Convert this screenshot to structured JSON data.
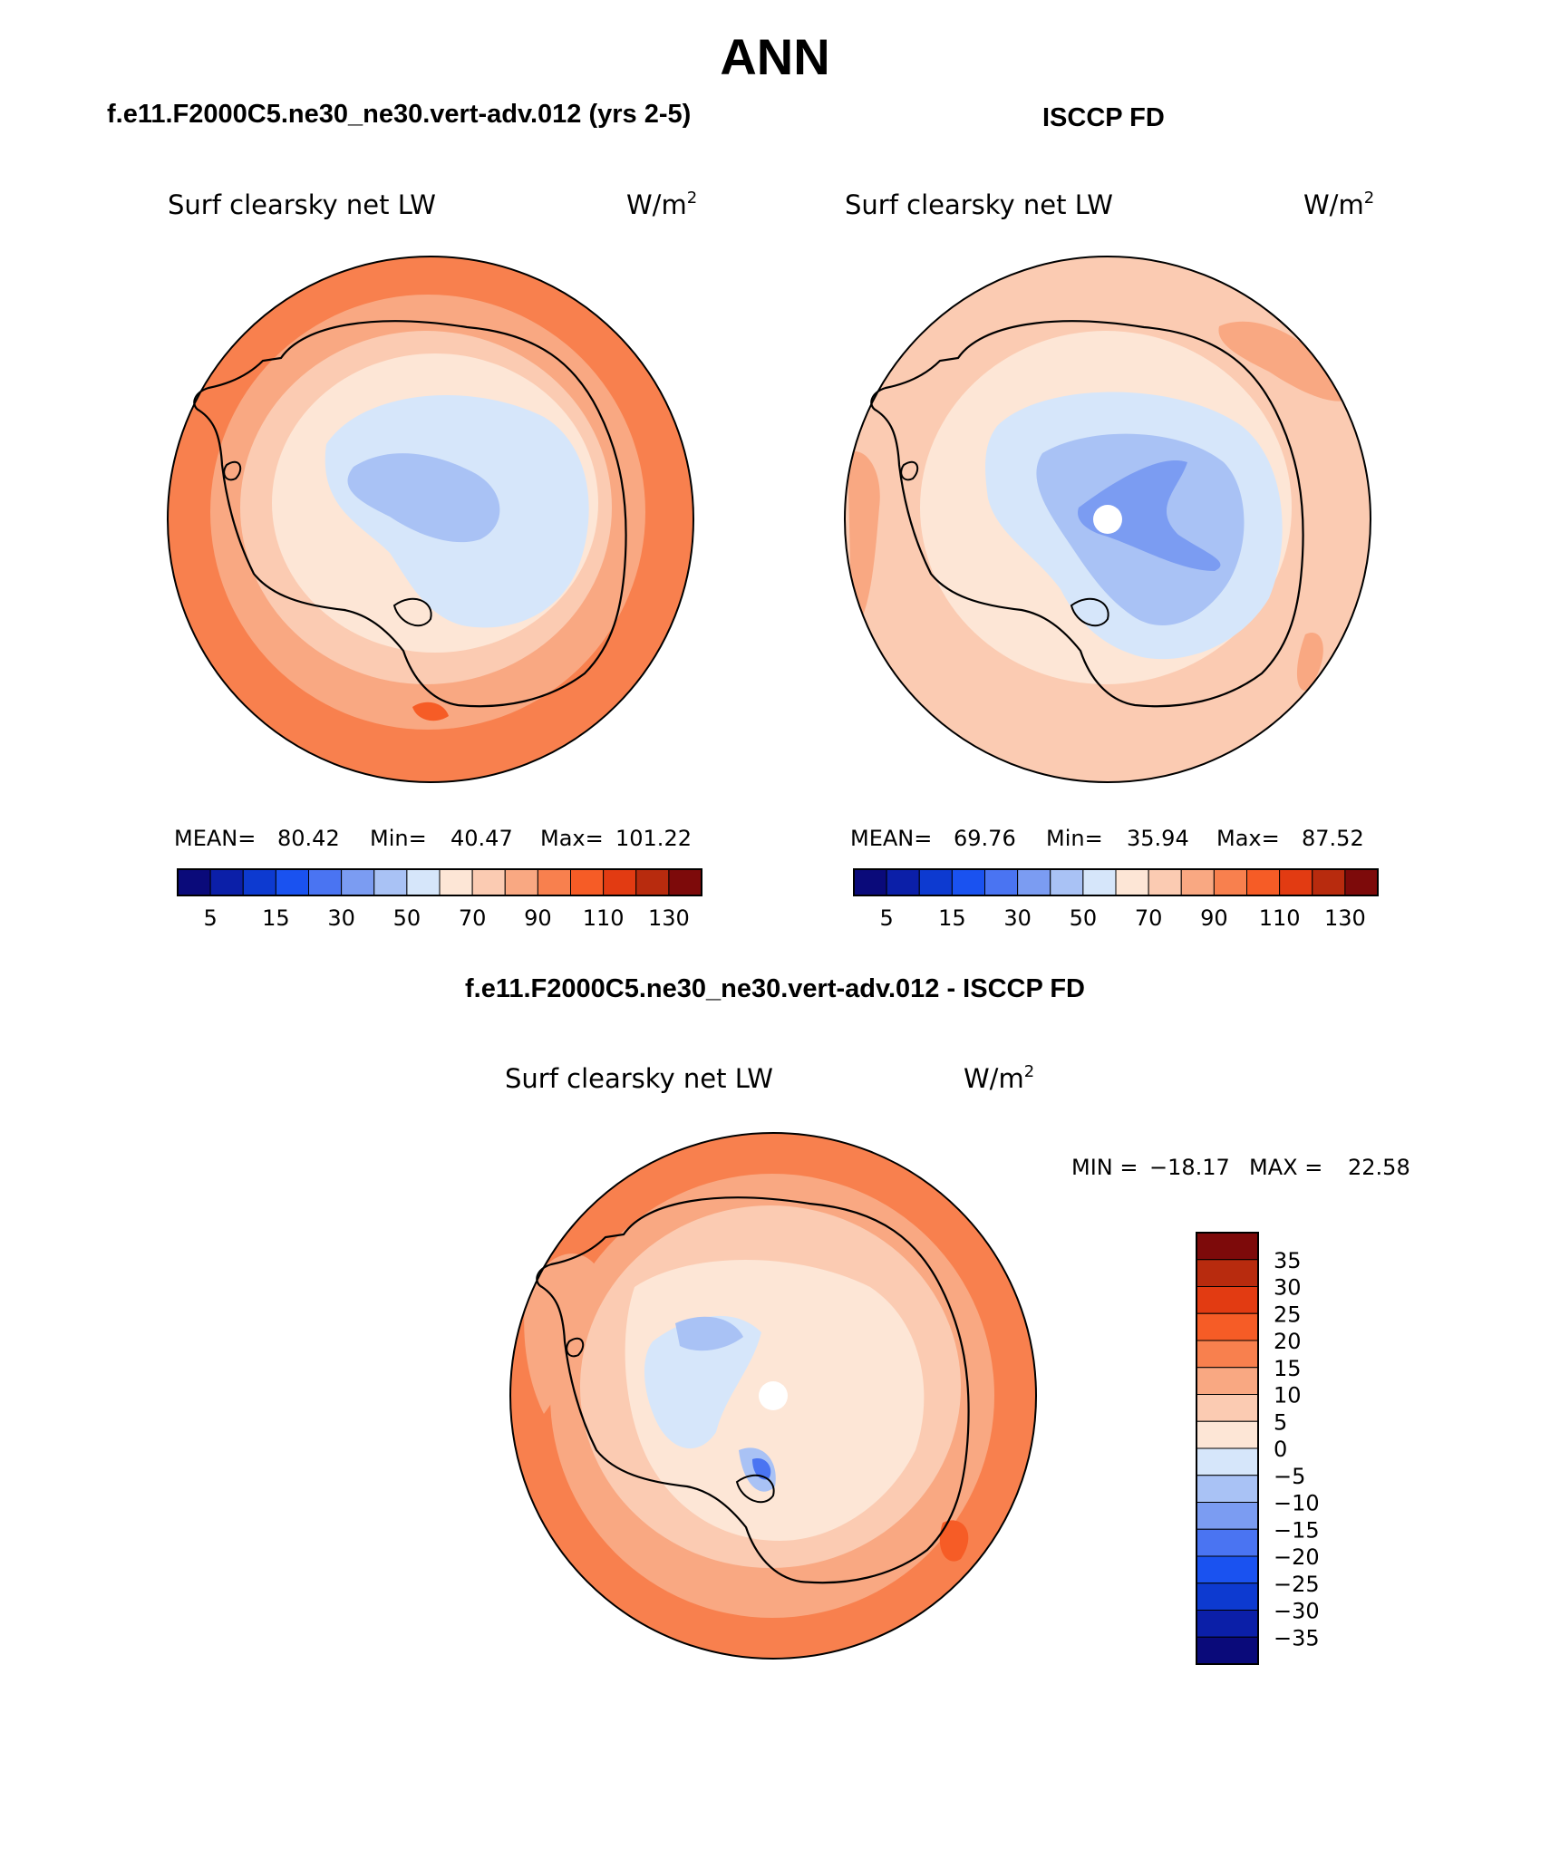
{
  "title": "ANN",
  "panels": {
    "model": {
      "heading": "f.e11.F2000C5.ne30_ne30.vert-adv.012 (yrs 2-5)",
      "variable": "Surf clearsky net LW",
      "units_base": "W/m",
      "units_exp": "2",
      "stats": {
        "mean_label": "MEAN=",
        "mean": "80.42",
        "min_label": "Min=",
        "min": "40.47",
        "max_label": "Max=",
        "max": "101.22"
      }
    },
    "obs": {
      "heading": "ISCCP FD",
      "variable": "Surf clearsky net LW",
      "units_base": "W/m",
      "units_exp": "2",
      "stats": {
        "mean_label": "MEAN=",
        "mean": "69.76",
        "min_label": "Min=",
        "min": "35.94",
        "max_label": "Max=",
        "max": "87.52"
      }
    },
    "diff": {
      "heading": "f.e11.F2000C5.ne30_ne30.vert-adv.012 - ISCCP FD",
      "variable": "Surf clearsky net LW",
      "units_base": "W/m",
      "units_exp": "2",
      "stats": {
        "min_label": "MIN =",
        "min": "−18.17",
        "max_label": "MAX =",
        "max": "22.58"
      }
    }
  },
  "colorbar_field": {
    "colors": [
      "#0a0a7a",
      "#0b1fa8",
      "#0d3ad0",
      "#1a52f0",
      "#4a74f2",
      "#7b9cf2",
      "#a9c2f5",
      "#d6e6fa",
      "#fde6d6",
      "#fbcbb2",
      "#f9a882",
      "#f8804e",
      "#f65c26",
      "#e23b12",
      "#b82b0e",
      "#7d0a0a"
    ],
    "tick_labels": [
      "5",
      "15",
      "30",
      "50",
      "70",
      "90",
      "110",
      "130"
    ]
  },
  "colorbar_diff": {
    "colors": [
      "#7d0a0a",
      "#b82b0e",
      "#e23b12",
      "#f65c26",
      "#f8804e",
      "#f9a882",
      "#fbcbb2",
      "#fde6d6",
      "#d6e6fa",
      "#a9c2f5",
      "#7b9cf2",
      "#4a74f2",
      "#1a52f0",
      "#0d3ad0",
      "#0b1fa8",
      "#0a0a7a"
    ],
    "tick_labels": [
      "35",
      "30",
      "25",
      "20",
      "15",
      "10",
      "5",
      "0",
      "−5",
      "−10",
      "−15",
      "−20",
      "−25",
      "−30",
      "−35"
    ]
  }
}
